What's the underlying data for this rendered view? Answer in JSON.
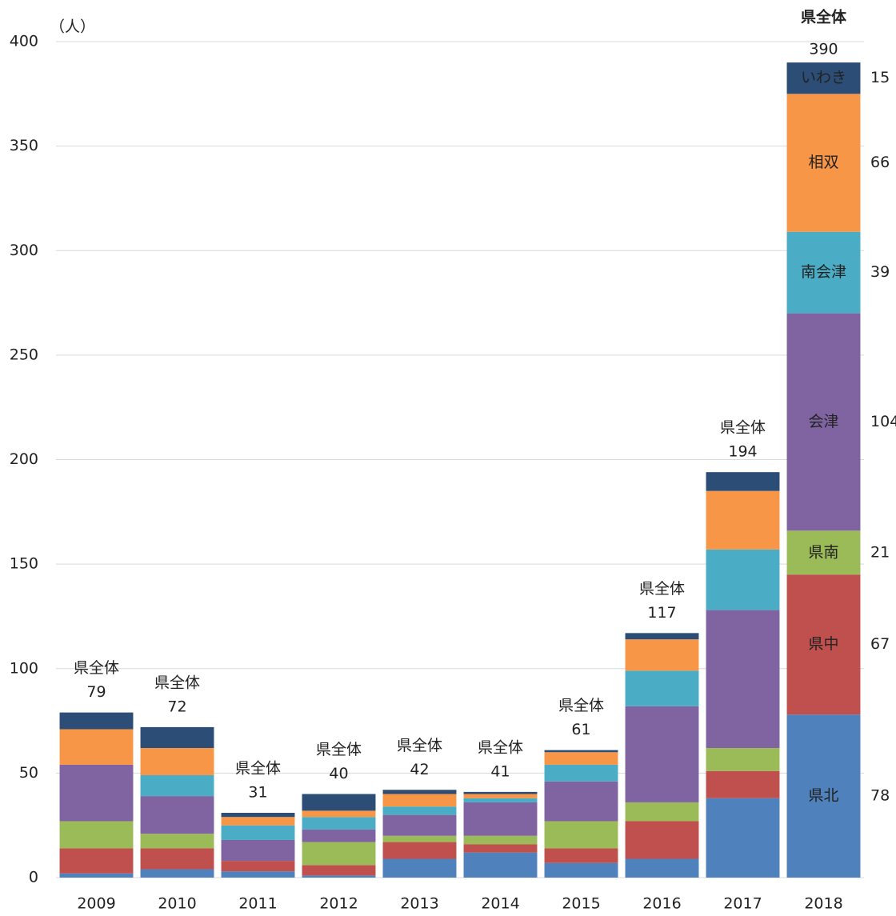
{
  "chart_data": {
    "type": "stacked-bar",
    "y_unit": "（人）",
    "total_label": "県全体",
    "categories": [
      "2009",
      "2010",
      "2011",
      "2012",
      "2013",
      "2014",
      "2015",
      "2016",
      "2017",
      "2018"
    ],
    "totals": [
      79,
      72,
      31,
      40,
      42,
      41,
      61,
      117,
      194,
      390
    ],
    "series": [
      {
        "name": "県北",
        "color": "#4f81bd",
        "values": [
          2,
          4,
          3,
          1,
          9,
          12,
          7,
          9,
          38,
          78
        ]
      },
      {
        "name": "県中",
        "color": "#c0504d",
        "values": [
          12,
          10,
          5,
          5,
          8,
          4,
          7,
          18,
          13,
          67
        ]
      },
      {
        "name": "県南",
        "color": "#9bbb59",
        "values": [
          13,
          7,
          0,
          11,
          3,
          4,
          13,
          9,
          11,
          21
        ]
      },
      {
        "name": "会津",
        "color": "#8064a2",
        "values": [
          27,
          18,
          10,
          6,
          10,
          16,
          19,
          46,
          66,
          104
        ]
      },
      {
        "name": "南会津",
        "color": "#4bacc6",
        "values": [
          0,
          10,
          7,
          6,
          4,
          2,
          8,
          17,
          29,
          39
        ]
      },
      {
        "name": "相双",
        "color": "#f79646",
        "values": [
          17,
          13,
          4,
          3,
          6,
          2,
          6,
          15,
          28,
          66
        ]
      },
      {
        "name": "いわき",
        "color": "#2c4d75",
        "values": [
          8,
          10,
          2,
          8,
          2,
          1,
          1,
          3,
          9,
          15
        ]
      }
    ],
    "ylim": [
      0,
      400
    ],
    "yticks": [
      0,
      50,
      100,
      150,
      200,
      250,
      300,
      350,
      400
    ],
    "grid": true
  }
}
